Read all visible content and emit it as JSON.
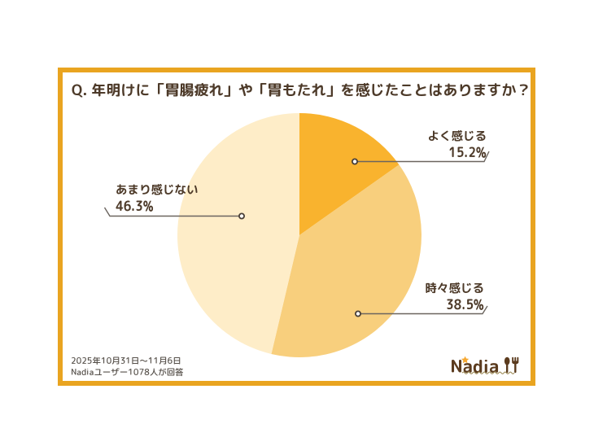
{
  "title": "Q. 年明けに「胃腸疲れ」や「胃もたれ」を感じたことはありますか？",
  "chart_data": {
    "type": "pie",
    "title": "Q. 年明けに「胃腸疲れ」や「胃もたれ」を感じたことはありますか？",
    "start_angle_deg": 0,
    "direction": "clockwise",
    "center": [
      368,
      289
    ],
    "radius": 150,
    "slices": [
      {
        "label": "よく感じる",
        "value": 15.2,
        "unit": "%",
        "color": "#F9B32E"
      },
      {
        "label": "時々感じる",
        "value": 38.5,
        "unit": "%",
        "color": "#F8CF7D"
      },
      {
        "label": "あまり感じない",
        "value": 46.3,
        "unit": "%",
        "color": "#FEEDC8"
      }
    ],
    "legend_position": "callout-labels"
  },
  "labels": [
    {
      "name": "よく感じる",
      "pct": "15.2%"
    },
    {
      "name": "時々感じる",
      "pct": "38.5%"
    },
    {
      "name": "あまり感じない",
      "pct": "46.3%"
    }
  ],
  "footer": {
    "period": "2025年10月31日～11月6日",
    "respondents": "Nadiaユーザー1078人が回答"
  },
  "logo": {
    "text": "Nadia",
    "star_icon": "star",
    "utensils_icon": "spoon-and-fork"
  },
  "colors": {
    "frame": "#E9A420",
    "ink": "#4D3A29",
    "slice_often": "#F9B32E",
    "slice_sometimes": "#F8CF7D",
    "slice_rarely": "#FEEDC8",
    "leader_line": "#6B655F",
    "marker_ring": "#4A4038",
    "footer_text": "#57514B",
    "logo_brown": "#5B3B1E",
    "logo_star": "#F6A933",
    "logo_wave": "#9C8A56"
  }
}
